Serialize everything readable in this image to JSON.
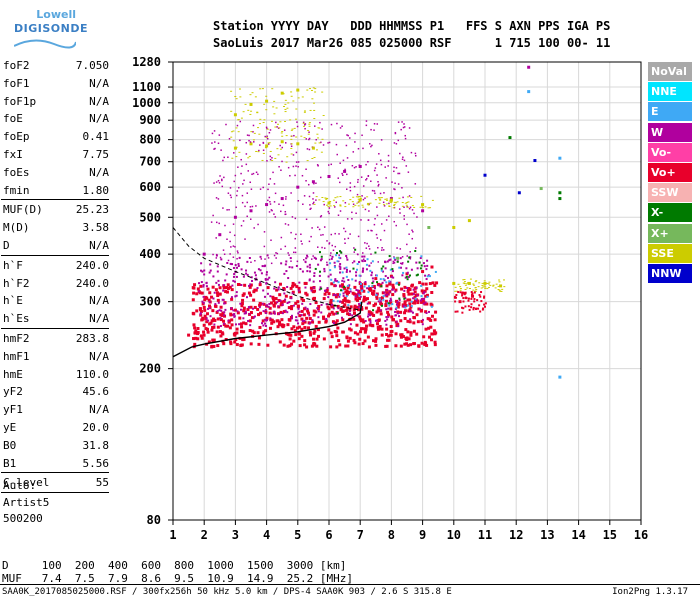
{
  "logo": {
    "top": "Lowell",
    "bottom": "DIGISONDE"
  },
  "header": {
    "line1": "Station YYYY DAY   DDD HHMMSS P1   FFS S AXN PPS IGA PS",
    "line2": "SaoLuis 2017 Mar26 085 025000 RSF      1 715 100 00- 11"
  },
  "params": [
    {
      "k": "foF2",
      "v": "7.050"
    },
    {
      "k": "foF1",
      "v": "N/A"
    },
    {
      "k": "foF1p",
      "v": "N/A"
    },
    {
      "k": "foE",
      "v": "N/A"
    },
    {
      "k": "foEp",
      "v": "0.41"
    },
    {
      "k": "fxI",
      "v": "7.75"
    },
    {
      "k": "foEs",
      "v": "N/A"
    },
    {
      "k": "fmin",
      "v": "1.80",
      "sep_after": true
    },
    {
      "k": "MUF(D)",
      "v": "25.23"
    },
    {
      "k": "M(D)",
      "v": "3.58"
    },
    {
      "k": "D",
      "v": "N/A",
      "sep_after": true
    },
    {
      "k": "h`F",
      "v": "240.0"
    },
    {
      "k": "h`F2",
      "v": "240.0"
    },
    {
      "k": "h`E",
      "v": "N/A"
    },
    {
      "k": "h`Es",
      "v": "N/A",
      "sep_after": true
    },
    {
      "k": "hmF2",
      "v": "283.8"
    },
    {
      "k": "hmF1",
      "v": "N/A"
    },
    {
      "k": "hmE",
      "v": "110.0"
    },
    {
      "k": "yF2",
      "v": "45.6"
    },
    {
      "k": "yF1",
      "v": "N/A"
    },
    {
      "k": "yE",
      "v": "20.0"
    },
    {
      "k": "B0",
      "v": "31.8"
    },
    {
      "k": "B1",
      "v": "5.56",
      "sep_after": true
    },
    {
      "k": "C-level",
      "v": "55",
      "sep_after": true
    }
  ],
  "auto": [
    "Auto:",
    "Artist5",
    "500200"
  ],
  "legend": [
    {
      "label": "NoVal",
      "color": "#a9a9a9"
    },
    {
      "label": "NNE",
      "color": "#00e5ff"
    },
    {
      "label": "E",
      "color": "#3fa9f5"
    },
    {
      "label": "W",
      "color": "#b0009e"
    },
    {
      "label": "Vo-",
      "color": "#ff3fa6"
    },
    {
      "label": "Vo+",
      "color": "#e8002b"
    },
    {
      "label": "SSW",
      "color": "#f7b2b2"
    },
    {
      "label": "X-",
      "color": "#007a00"
    },
    {
      "label": "X+",
      "color": "#76b85c"
    },
    {
      "label": "SSE",
      "color": "#cccc00"
    },
    {
      "label": "NNW",
      "color": "#0000cc"
    }
  ],
  "chart_data": {
    "type": "scatter",
    "title": "",
    "xlabel": "",
    "ylabel": "",
    "x_ticks": [
      1,
      2,
      3,
      4,
      5,
      6,
      7,
      8,
      9,
      10,
      11,
      12,
      13,
      14,
      15,
      16
    ],
    "y_ticks": [
      80,
      200,
      300,
      400,
      500,
      600,
      700,
      800,
      900,
      1000,
      1100,
      1280
    ],
    "xlim": [
      1,
      16
    ],
    "ylim": [
      80,
      1280
    ],
    "y_scale": "log",
    "grid": true,
    "legend_position": "right",
    "series": [
      {
        "name": "Vo+",
        "color": "#e8002b",
        "points": [
          [
            1.5,
            245
          ],
          [
            1.8,
            255
          ],
          [
            2.0,
            260
          ],
          [
            2.3,
            270
          ],
          [
            2.6,
            280
          ],
          [
            3.0,
            285
          ],
          [
            3.5,
            290
          ],
          [
            4.0,
            292
          ],
          [
            4.5,
            295
          ],
          [
            5.0,
            300
          ],
          [
            5.5,
            305
          ],
          [
            6.0,
            315
          ],
          [
            6.5,
            325
          ],
          [
            7.0,
            335
          ],
          [
            7.5,
            345
          ],
          [
            8.0,
            350
          ],
          [
            8.5,
            355
          ],
          [
            9.0,
            360
          ],
          [
            9.3,
            370
          ],
          [
            10.2,
            300
          ],
          [
            10.6,
            310
          ]
        ]
      },
      {
        "name": "W",
        "color": "#b0009e",
        "points": [
          [
            2.0,
            400
          ],
          [
            2.5,
            450
          ],
          [
            3.0,
            500
          ],
          [
            3.5,
            520
          ],
          [
            4.0,
            540
          ],
          [
            4.5,
            560
          ],
          [
            5.0,
            600
          ],
          [
            5.5,
            620
          ],
          [
            6.0,
            640
          ],
          [
            6.5,
            660
          ],
          [
            7.0,
            680
          ],
          [
            8.0,
            560
          ],
          [
            9.0,
            520
          ],
          [
            12.4,
            1240
          ]
        ]
      },
      {
        "name": "SSE",
        "color": "#cccc00",
        "points": [
          [
            3.0,
            760
          ],
          [
            3.5,
            780
          ],
          [
            4.0,
            770
          ],
          [
            4.5,
            790
          ],
          [
            5.0,
            780
          ],
          [
            5.5,
            760
          ],
          [
            3.0,
            930
          ],
          [
            3.5,
            990
          ],
          [
            4.0,
            1010
          ],
          [
            4.5,
            1060
          ],
          [
            5.0,
            1080
          ],
          [
            6.0,
            545
          ],
          [
            7.0,
            555
          ],
          [
            8.0,
            555
          ],
          [
            9.0,
            540
          ],
          [
            10.0,
            470
          ],
          [
            10.5,
            490
          ],
          [
            10.0,
            335
          ],
          [
            10.5,
            335
          ],
          [
            11.0,
            335
          ],
          [
            11.5,
            330
          ]
        ]
      },
      {
        "name": "X+",
        "color": "#76b85c",
        "points": [
          [
            8.2,
            390
          ],
          [
            9.2,
            470
          ],
          [
            12.8,
            595
          ]
        ]
      },
      {
        "name": "NNW",
        "color": "#0000cc",
        "points": [
          [
            11.0,
            645
          ],
          [
            12.1,
            580
          ],
          [
            12.6,
            705
          ]
        ]
      },
      {
        "name": "E",
        "color": "#3fa9f5",
        "points": [
          [
            12.4,
            1070
          ],
          [
            13.4,
            190
          ],
          [
            13.4,
            715
          ]
        ]
      },
      {
        "name": "X-",
        "color": "#007a00",
        "points": [
          [
            13.4,
            580
          ],
          [
            13.4,
            560
          ],
          [
            11.8,
            810
          ]
        ]
      }
    ]
  },
  "footer": {
    "line1": "D     100  200  400  600  800  1000  1500  3000 [km]",
    "line2": "MUF   7.4  7.5  7.9  8.6  9.5  10.9  14.9  25.2 [MHz]",
    "bottom": "SAA0K_2017085025000.RSF / 300fx256h 50 kHz 5.0 km / DPS-4 SAA0K 903 / 2.6 S 315.8 E",
    "version": "Ion2Png 1.3.17"
  }
}
